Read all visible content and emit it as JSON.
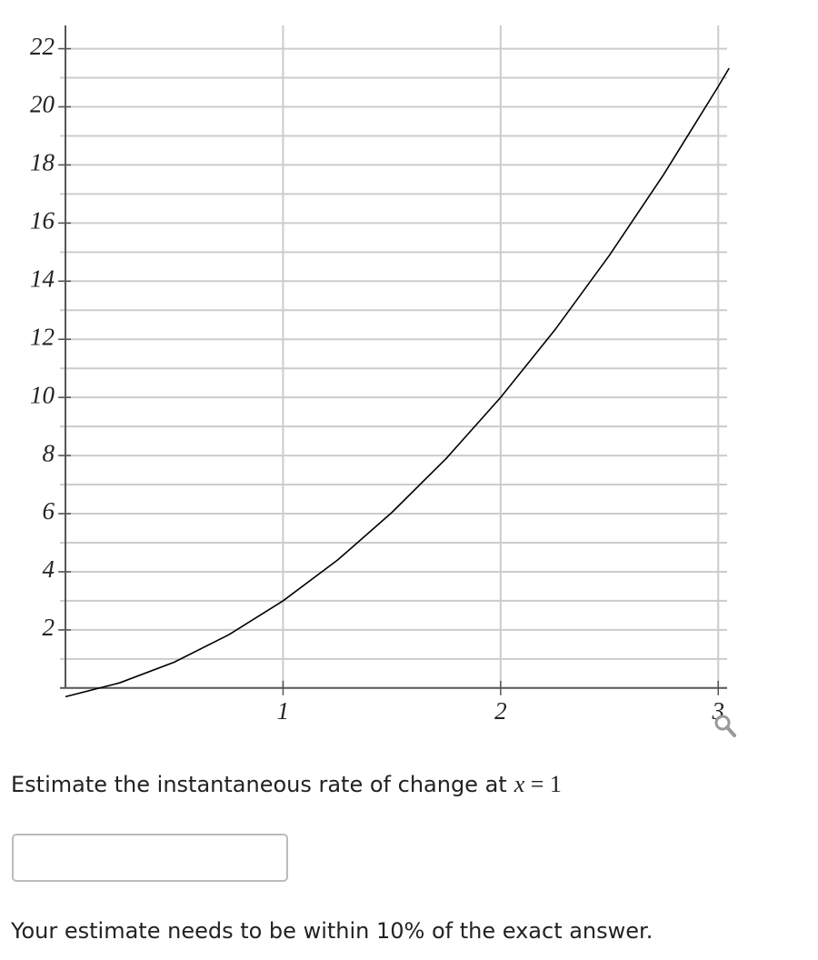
{
  "chart_data": {
    "type": "line",
    "x": [
      0,
      0.25,
      0.5,
      0.75,
      1,
      1.25,
      1.5,
      1.75,
      2,
      2.25,
      2.5,
      2.75,
      3,
      3.05
    ],
    "series": [
      {
        "color": "#000000",
        "values": [
          -0.3,
          0.18,
          0.89,
          1.83,
          3.0,
          4.4,
          6.04,
          7.9,
          10.0,
          12.33,
          14.89,
          17.68,
          20.7,
          21.33
        ]
      }
    ],
    "xlim": [
      0,
      3.07
    ],
    "ylim": [
      -0.35,
      22.8
    ],
    "xticks": [
      1,
      2,
      3
    ],
    "yticks": [
      2,
      4,
      6,
      8,
      10,
      12,
      14,
      16,
      18,
      20,
      22
    ],
    "y_minor_ticks": [
      1,
      3,
      5,
      7,
      9,
      11,
      13,
      15,
      17,
      19,
      21
    ],
    "grid": true
  },
  "question": {
    "text": "Estimate the instantaneous rate of change at",
    "variable": "x",
    "relation": "= 1"
  },
  "note": "Your estimate needs to be within 10% of the exact answer."
}
